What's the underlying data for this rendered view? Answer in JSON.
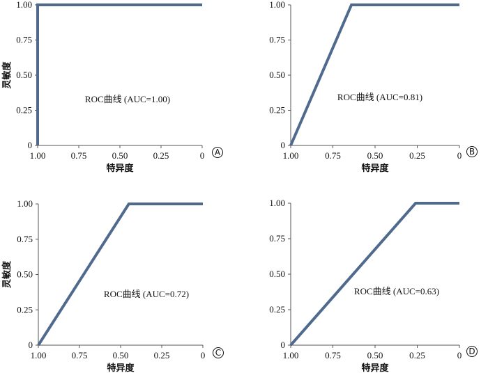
{
  "chart_data": [
    {
      "type": "line",
      "panel_label": "A",
      "annotation": "ROC曲线 (AUC=1.00)",
      "xlabel": "特异度",
      "ylabel": "灵敏度",
      "x_reversed": true,
      "xlim": [
        1.0,
        0
      ],
      "ylim": [
        0,
        1.0
      ],
      "x_ticks": [
        "1.00",
        "0.75",
        "0.50",
        "0.25",
        "0"
      ],
      "y_ticks": [
        "0",
        "0.25",
        "0.50",
        "0.75",
        "1.00"
      ],
      "series": [
        {
          "x": [
            1.0,
            1.0,
            0
          ],
          "y": [
            0,
            1.0,
            1.0
          ]
        }
      ],
      "line_color": "#4f6a8d"
    },
    {
      "type": "line",
      "panel_label": "B",
      "annotation": "ROC曲线 (AUC=0.81)",
      "xlabel": "特异度",
      "ylabel": "",
      "x_reversed": true,
      "xlim": [
        1.0,
        0
      ],
      "ylim": [
        0,
        1.0
      ],
      "x_ticks": [
        "1.00",
        "0.75",
        "0.50",
        "0.25",
        "0"
      ],
      "y_ticks": [
        "0",
        "0.25",
        "0.50",
        "0.75",
        "1.00"
      ],
      "series": [
        {
          "x": [
            1.0,
            0.64,
            0
          ],
          "y": [
            0,
            1.0,
            1.0
          ]
        }
      ],
      "line_color": "#4f6a8d"
    },
    {
      "type": "line",
      "panel_label": "C",
      "annotation": "ROC曲线 (AUC=0.72)",
      "xlabel": "特异度",
      "ylabel": "灵敏度",
      "x_reversed": true,
      "xlim": [
        1.0,
        0
      ],
      "ylim": [
        0,
        1.0
      ],
      "x_ticks": [
        "1.00",
        "0.75",
        "0.50",
        "0.25",
        "0"
      ],
      "y_ticks": [
        "0",
        "0.25",
        "0.50",
        "0.75",
        "1.00"
      ],
      "series": [
        {
          "x": [
            1.0,
            0.45,
            0
          ],
          "y": [
            0,
            1.0,
            1.0
          ]
        }
      ],
      "line_color": "#4f6a8d"
    },
    {
      "type": "line",
      "panel_label": "D",
      "annotation": "ROC曲线 (AUC=0.63)",
      "xlabel": "特异度",
      "ylabel": "",
      "x_reversed": true,
      "xlim": [
        1.0,
        0
      ],
      "ylim": [
        0,
        1.0
      ],
      "x_ticks": [
        "1.00",
        "0.75",
        "0.50",
        "0.25",
        "0"
      ],
      "y_ticks": [
        "0",
        "0.25",
        "0.50",
        "0.75",
        "1.00"
      ],
      "series": [
        {
          "x": [
            1.0,
            0.26,
            0
          ],
          "y": [
            0,
            1.0,
            1.0
          ]
        }
      ],
      "line_color": "#4f6a8d"
    }
  ]
}
